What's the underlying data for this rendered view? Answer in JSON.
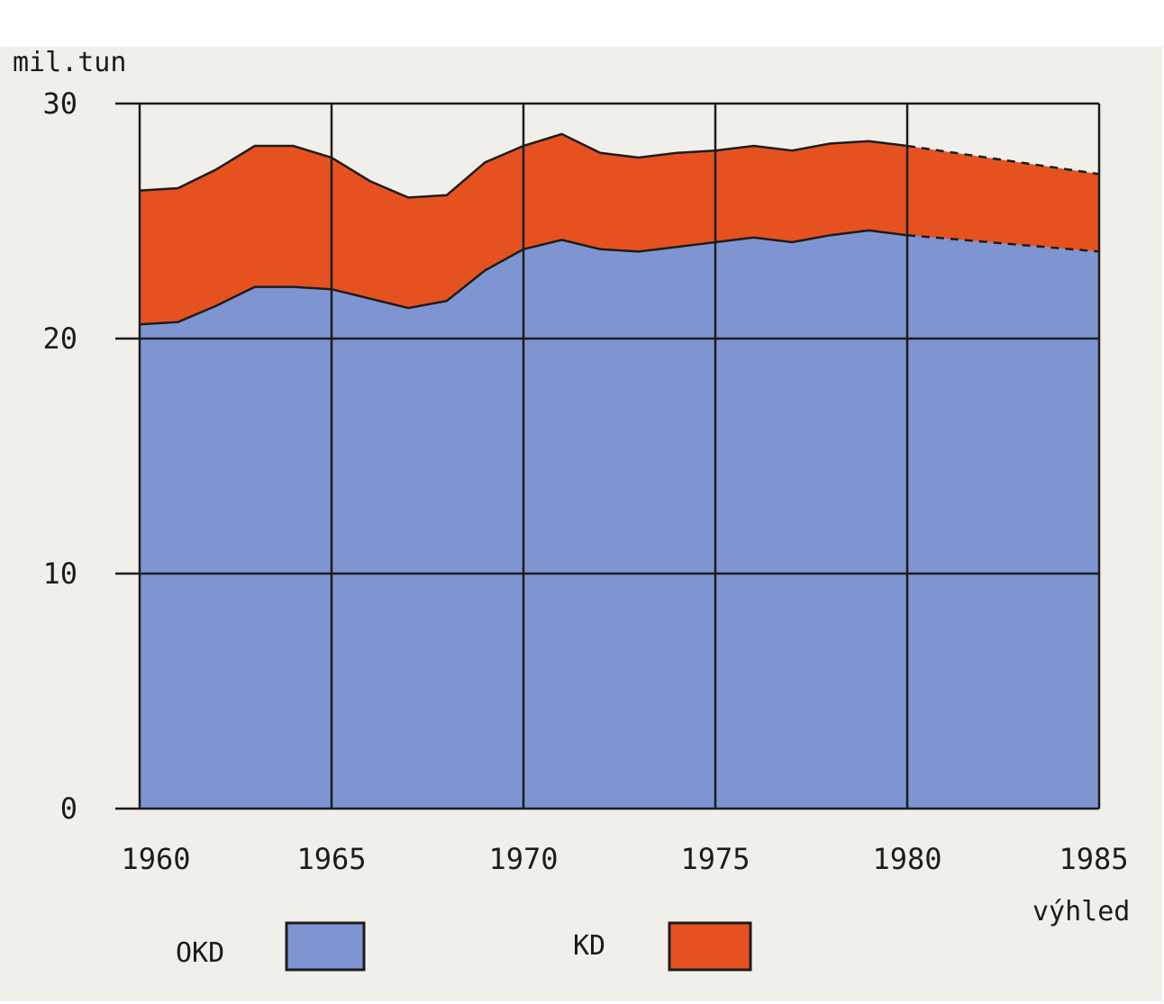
{
  "chart_data": {
    "type": "area",
    "stacked": true,
    "ylabel": "mil.tun",
    "xlim": [
      1960,
      1985
    ],
    "ylim": [
      0,
      30
    ],
    "y_ticks": [
      0,
      10,
      20,
      30
    ],
    "x_ticks": [
      1960,
      1965,
      1970,
      1975,
      1980,
      1985
    ],
    "x_tick_labels": [
      "1960",
      "1965",
      "1970",
      "1975",
      "1980",
      "1985"
    ],
    "x_note": "výhled",
    "projection_from": 1980,
    "grid": true,
    "legend_position": "bottom",
    "x": [
      1960,
      1961,
      1962,
      1963,
      1964,
      1965,
      1966,
      1967,
      1968,
      1969,
      1970,
      1971,
      1972,
      1973,
      1974,
      1975,
      1976,
      1977,
      1978,
      1979,
      1980,
      1985
    ],
    "series": [
      {
        "name": "OKD",
        "color": "#7f95d2",
        "values": [
          20.6,
          20.7,
          21.4,
          22.2,
          22.2,
          22.1,
          21.7,
          21.3,
          21.6,
          22.9,
          23.8,
          24.2,
          23.8,
          23.7,
          23.9,
          24.1,
          24.3,
          24.1,
          24.4,
          24.6,
          24.4,
          23.7
        ]
      },
      {
        "name": "KD",
        "color": "#e55220",
        "values": [
          5.7,
          5.7,
          5.8,
          6.0,
          6.0,
          5.6,
          5.0,
          4.7,
          4.5,
          4.6,
          4.4,
          4.5,
          4.1,
          4.0,
          4.0,
          3.9,
          3.9,
          3.9,
          3.9,
          3.8,
          3.8,
          3.3
        ]
      }
    ]
  }
}
